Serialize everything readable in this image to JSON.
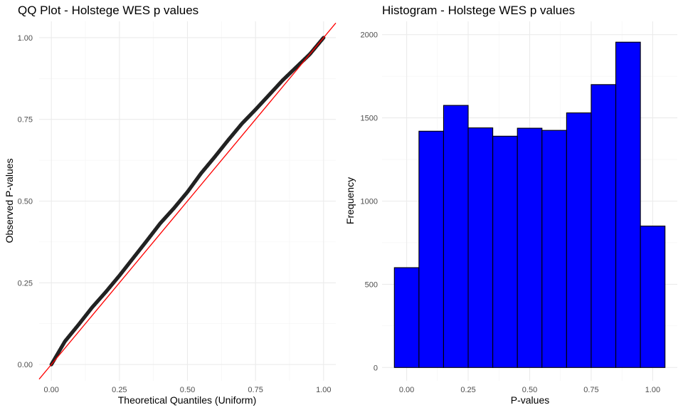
{
  "chart_data": [
    {
      "type": "scatter",
      "title": "QQ Plot -  Holstege WES p values",
      "xlabel": "Theoretical Quantiles (Uniform)",
      "ylabel": "Observed P-values",
      "xlim": [
        -0.045,
        1.045
      ],
      "ylim": [
        -0.05,
        1.05
      ],
      "x_ticks": [
        0,
        0.25,
        0.5,
        0.75,
        1
      ],
      "x_tick_labels": [
        "0.00",
        "0.25",
        "0.50",
        "0.75",
        "1.00"
      ],
      "y_ticks": [
        0,
        0.25,
        0.5,
        0.75,
        1
      ],
      "y_tick_labels": [
        "0.00",
        "0.25",
        "0.50",
        "0.75",
        "1.00"
      ],
      "grid": true,
      "point_color": "#222222",
      "series": [
        {
          "x": [
            0.0,
            0.05,
            0.1,
            0.15,
            0.2,
            0.25,
            0.3,
            0.35,
            0.4,
            0.45,
            0.5,
            0.55,
            0.6,
            0.65,
            0.7,
            0.75,
            0.8,
            0.85,
            0.9,
            0.95,
            1.0
          ],
          "y": [
            0.0,
            0.071,
            0.122,
            0.175,
            0.222,
            0.272,
            0.325,
            0.378,
            0.432,
            0.478,
            0.528,
            0.585,
            0.635,
            0.687,
            0.737,
            0.78,
            0.825,
            0.87,
            0.91,
            0.95,
            1.0
          ]
        }
      ],
      "reference_line": {
        "slope": 1,
        "intercept": 0,
        "color": "#ff0000"
      }
    },
    {
      "type": "bar",
      "title": "Histogram -  Holstege WES p values",
      "xlabel": "P-values",
      "ylabel": "Frequency",
      "xlim": [
        -0.1,
        1.1
      ],
      "ylim": [
        -80,
        2080
      ],
      "x_ticks": [
        0,
        0.25,
        0.5,
        0.75,
        1
      ],
      "x_tick_labels": [
        "0.00",
        "0.25",
        "0.50",
        "0.75",
        "1.00"
      ],
      "y_ticks": [
        0,
        500,
        1000,
        1500,
        2000
      ],
      "y_tick_labels": [
        "0",
        "500",
        "1000",
        "1500",
        "2000"
      ],
      "grid": true,
      "bin_width": 0.1,
      "bin_centers": [
        0.0,
        0.1,
        0.2,
        0.3,
        0.4,
        0.5,
        0.6,
        0.7,
        0.8,
        0.9,
        1.0
      ],
      "values": [
        600,
        1420,
        1575,
        1440,
        1390,
        1438,
        1425,
        1530,
        1700,
        1955,
        850
      ],
      "fill_color": "#0000ff",
      "edge_color": "#000000"
    }
  ]
}
